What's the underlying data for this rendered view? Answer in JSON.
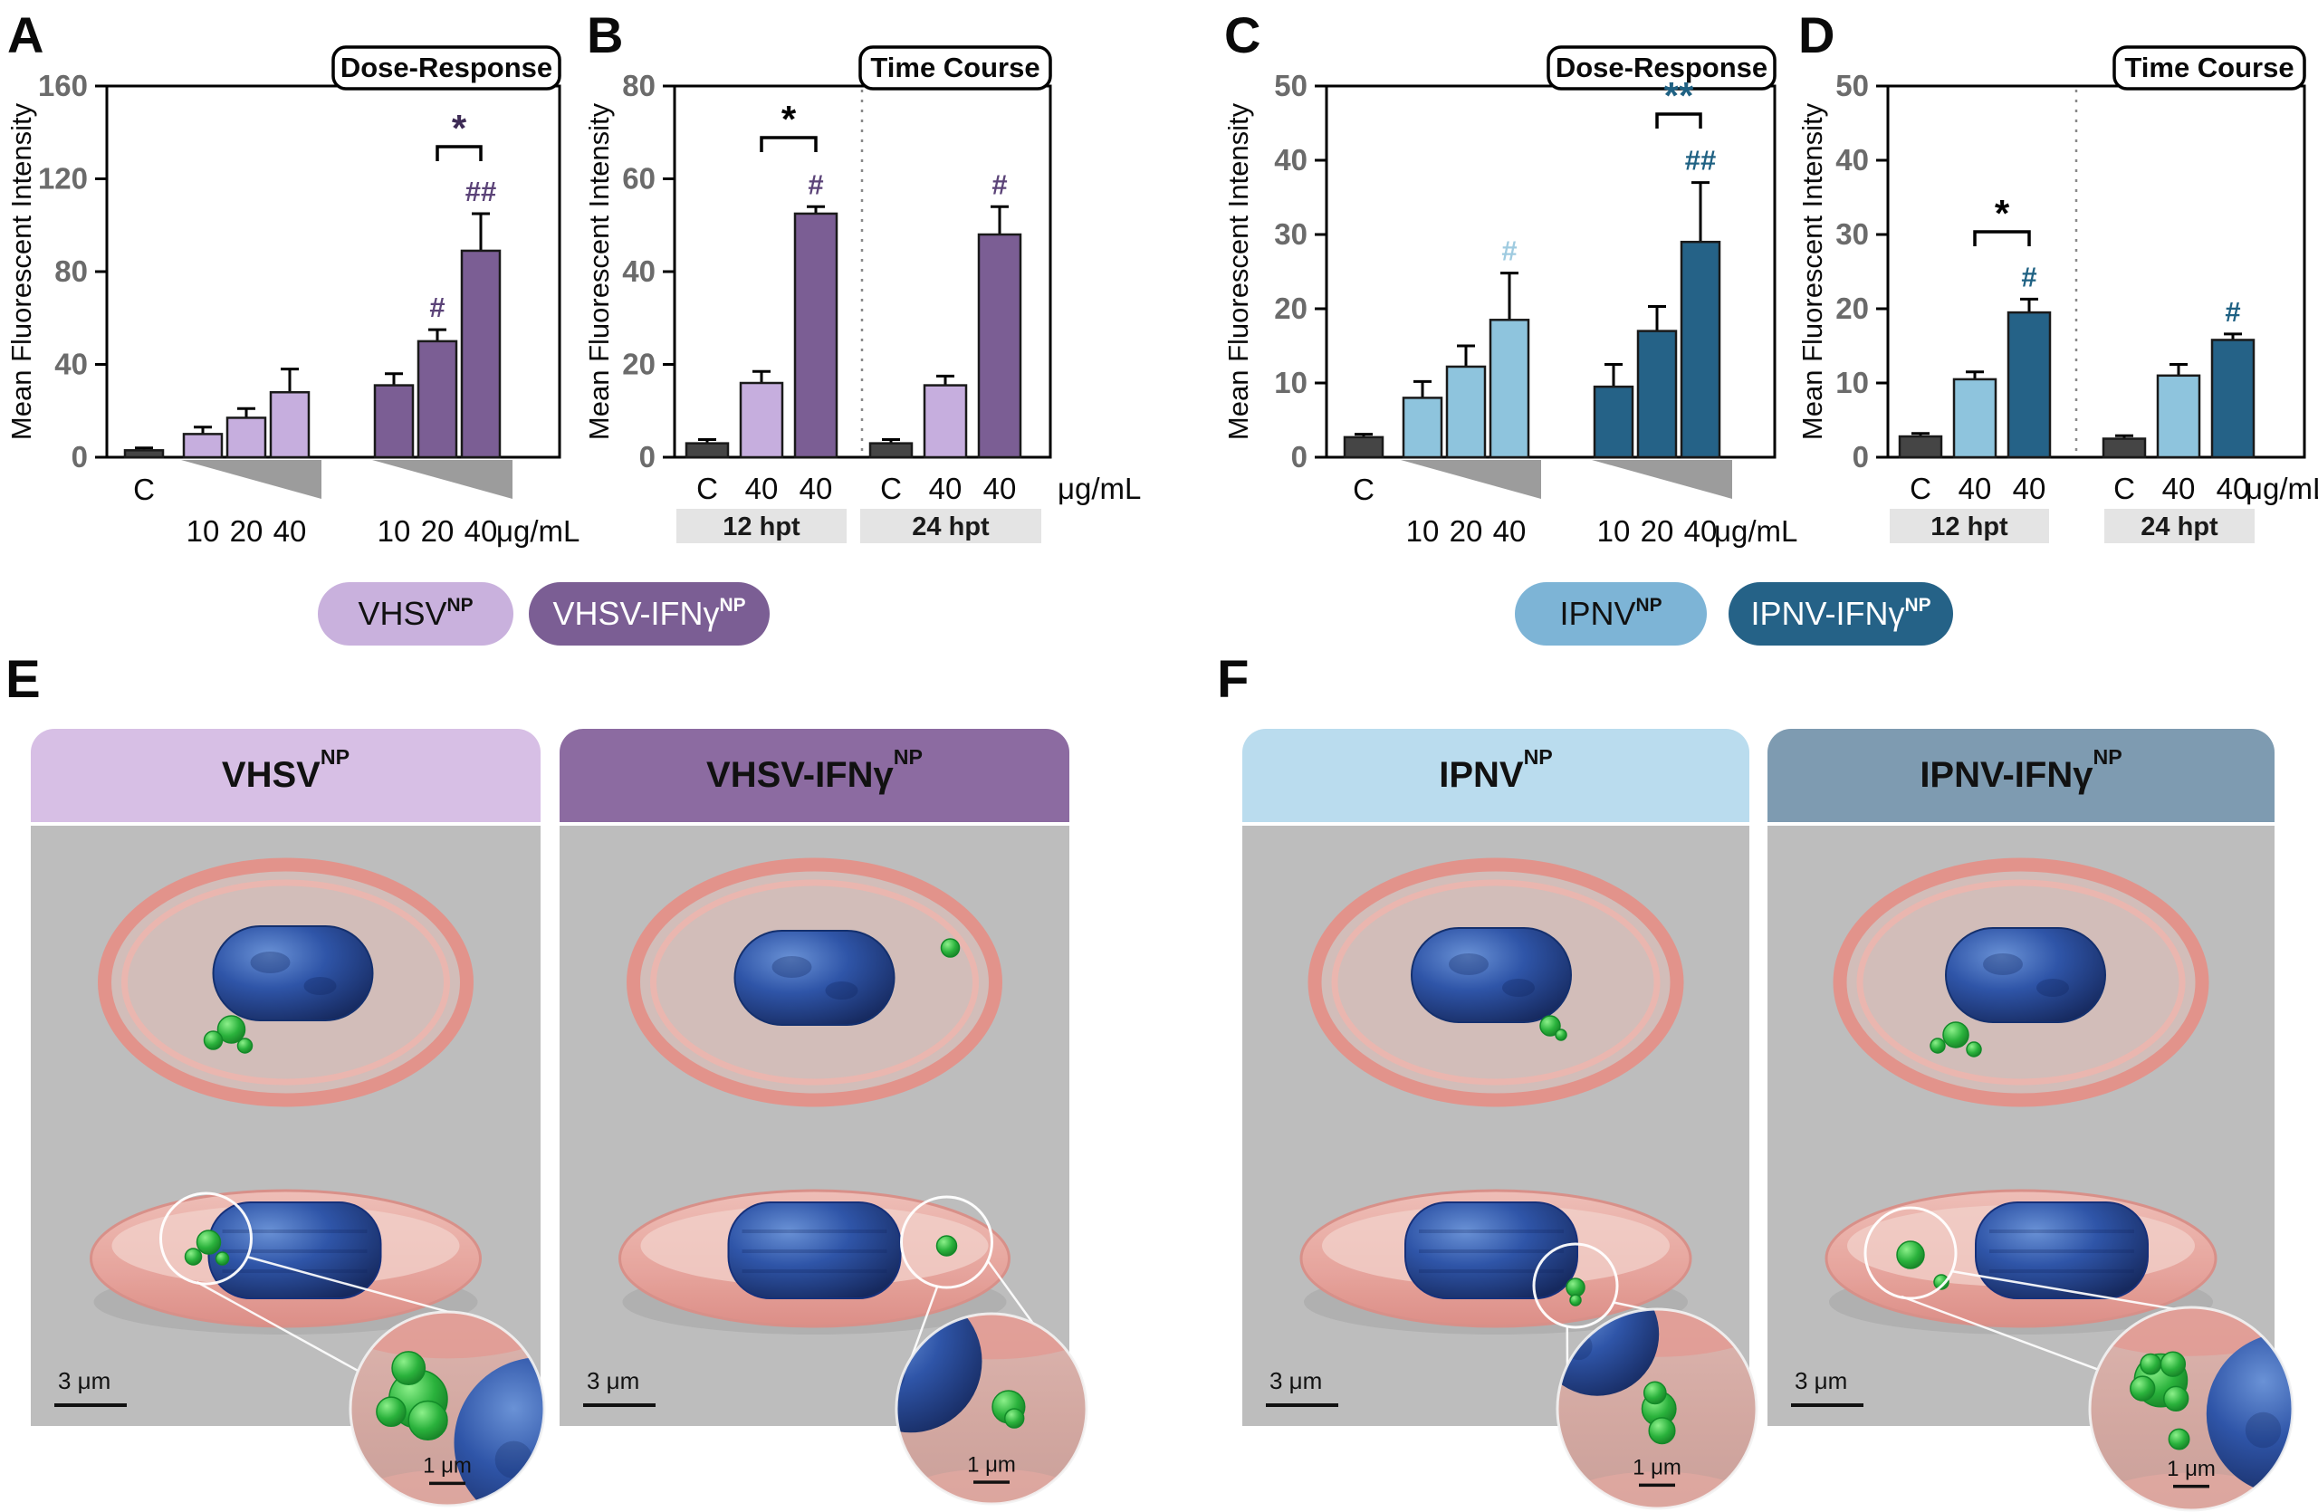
{
  "letters": {
    "A": "A",
    "B": "B",
    "C": "C",
    "D": "D",
    "E": "E",
    "F": "F"
  },
  "chart_data": [
    {
      "panel": "A",
      "type": "bar",
      "box_label": "Dose-Response",
      "ylabel": "Mean Fluorescent Intensity",
      "ylim": [
        0,
        160
      ],
      "yticks": [
        0,
        40,
        80,
        120,
        160
      ],
      "x_unit": "μg/mL",
      "bars": [
        {
          "x": "C",
          "series": "Control",
          "value": 3,
          "err": 1
        },
        {
          "x": "10",
          "series": "VHSV-NP",
          "value": 10,
          "err": 3
        },
        {
          "x": "20",
          "series": "VHSV-NP",
          "value": 17,
          "err": 4
        },
        {
          "x": "40",
          "series": "VHSV-NP",
          "value": 28,
          "err": 10
        },
        {
          "x": "10",
          "series": "VHSV-IFNg-NP",
          "value": 31,
          "err": 5
        },
        {
          "x": "20",
          "series": "VHSV-IFNg-NP",
          "value": 50,
          "err": 5,
          "sig": "#"
        },
        {
          "x": "40",
          "series": "VHSV-IFNg-NP",
          "value": 89,
          "err": 16,
          "sig": "##"
        }
      ],
      "bracket": {
        "from": 5,
        "to": 6,
        "label": "*",
        "color": "#3d2b55"
      }
    },
    {
      "panel": "B",
      "type": "bar",
      "box_label": "Time Course",
      "ylabel": "Mean Fluorescent Intensity",
      "ylim": [
        0,
        80
      ],
      "yticks": [
        0,
        20,
        40,
        60,
        80
      ],
      "x_unit": "μg/mL",
      "bands": [
        {
          "label": "12 hpt",
          "from": 0,
          "to": 2
        },
        {
          "label": "24 hpt",
          "from": 3,
          "to": 5
        }
      ],
      "bars": [
        {
          "x": "C",
          "series": "Control",
          "value": 3,
          "err": 0.8
        },
        {
          "x": "40",
          "series": "VHSV-NP",
          "value": 16,
          "err": 2.5
        },
        {
          "x": "40",
          "series": "VHSV-IFNg-NP",
          "value": 52.5,
          "err": 1.5,
          "sig": "#"
        },
        {
          "x": "C",
          "series": "Control",
          "value": 3,
          "err": 0.8
        },
        {
          "x": "40",
          "series": "VHSV-NP",
          "value": 15.5,
          "err": 2
        },
        {
          "x": "40",
          "series": "VHSV-IFNg-NP",
          "value": 48,
          "err": 6,
          "sig": "#"
        }
      ],
      "bracket": {
        "from": 1,
        "to": 2,
        "label": "*",
        "color": "#000000"
      }
    },
    {
      "panel": "C",
      "type": "bar",
      "box_label": "Dose-Response",
      "ylabel": "Mean Fluorescent Intensity",
      "ylim": [
        0,
        50
      ],
      "yticks": [
        0,
        10,
        20,
        30,
        40,
        50
      ],
      "x_unit": "μg/mL",
      "bars": [
        {
          "x": "C",
          "series": "Control",
          "value": 2.7,
          "err": 0.4
        },
        {
          "x": "10",
          "series": "IPNV-NP",
          "value": 8,
          "err": 2.2
        },
        {
          "x": "20",
          "series": "IPNV-NP",
          "value": 12.2,
          "err": 2.8
        },
        {
          "x": "40",
          "series": "IPNV-NP",
          "value": 18.5,
          "err": 6.3,
          "sig": "#"
        },
        {
          "x": "10",
          "series": "IPNV-IFNg-NP",
          "value": 9.5,
          "err": 3
        },
        {
          "x": "20",
          "series": "IPNV-IFNg-NP",
          "value": 17,
          "err": 3.3
        },
        {
          "x": "40",
          "series": "IPNV-IFNg-NP",
          "value": 29,
          "err": 8,
          "sig": "##"
        }
      ],
      "bracket": {
        "from": 5,
        "to": 6,
        "label": "**",
        "color": "#1f6183"
      }
    },
    {
      "panel": "D",
      "type": "bar",
      "box_label": "Time Course",
      "ylabel": "Mean Fluorescent Intensity",
      "ylim": [
        0,
        50
      ],
      "yticks": [
        0,
        10,
        20,
        30,
        40,
        50
      ],
      "x_unit": "μg/mL",
      "bands": [
        {
          "label": "12 hpt",
          "from": 0,
          "to": 2
        },
        {
          "label": "24 hpt",
          "from": 3,
          "to": 5
        }
      ],
      "bars": [
        {
          "x": "C",
          "series": "Control",
          "value": 2.8,
          "err": 0.4
        },
        {
          "x": "40",
          "series": "IPNV-NP",
          "value": 10.5,
          "err": 1
        },
        {
          "x": "40",
          "series": "IPNV-IFNg-NP",
          "value": 19.5,
          "err": 1.8,
          "sig": "#"
        },
        {
          "x": "C",
          "series": "Control",
          "value": 2.5,
          "err": 0.4
        },
        {
          "x": "40",
          "series": "IPNV-NP",
          "value": 11,
          "err": 1.5
        },
        {
          "x": "40",
          "series": "IPNV-IFNg-NP",
          "value": 15.8,
          "err": 0.8,
          "sig": "#"
        }
      ],
      "bracket": {
        "from": 1,
        "to": 2,
        "label": "*",
        "color": "#000000"
      }
    }
  ],
  "series_colors": {
    "Control": "#454545",
    "VHSV-NP": "#c6aede",
    "VHSV-IFNg-NP": "#7b5e94",
    "IPNV-NP": "#8ec4dd",
    "IPNV-IFNg-NP": "#256287"
  },
  "sig_colors": {
    "Control": "#333333",
    "VHSV-NP": "#9a7fb8",
    "VHSV-IFNg-NP": "#5b4378",
    "IPNV-NP": "#9fcbe0",
    "IPNV-IFNg-NP": "#1f6183"
  },
  "legend": {
    "pills": [
      {
        "base": "VHSV",
        "sup": "NP",
        "bg": "#c9b1dd",
        "fg": "#111111"
      },
      {
        "base": "VHSV-IFNγ",
        "sup": "NP",
        "bg": "#7b5e94",
        "fg": "#ffffff"
      },
      {
        "base": "IPNV",
        "sup": "NP",
        "bg": "#7db4d6",
        "fg": "#111111"
      },
      {
        "base": "IPNV-IFNγ",
        "sup": "NP",
        "bg": "#256287",
        "fg": "#ffffff"
      }
    ]
  },
  "micro_panels": [
    {
      "letter": "E",
      "cards": [
        {
          "title_base": "VHSV",
          "title_sup": "NP",
          "header_bg": "#d7bfe5",
          "scale_bar": "3 μm",
          "inset_scale_bar": "1 μm"
        },
        {
          "title_base": "VHSV-IFNγ",
          "title_sup": "NP",
          "header_bg": "#8c6ba1",
          "scale_bar": "3 μm",
          "inset_scale_bar": "1 μm"
        }
      ]
    },
    {
      "letter": "F",
      "cards": [
        {
          "title_base": "IPNV",
          "title_sup": "NP",
          "header_bg": "#badcee",
          "scale_bar": "3 μm",
          "inset_scale_bar": "1 μm"
        },
        {
          "title_base": "IPNV-IFNγ",
          "title_sup": "NP",
          "header_bg": "#7e9bb1",
          "scale_bar": "3 μm",
          "inset_scale_bar": "1 μm"
        }
      ]
    }
  ]
}
